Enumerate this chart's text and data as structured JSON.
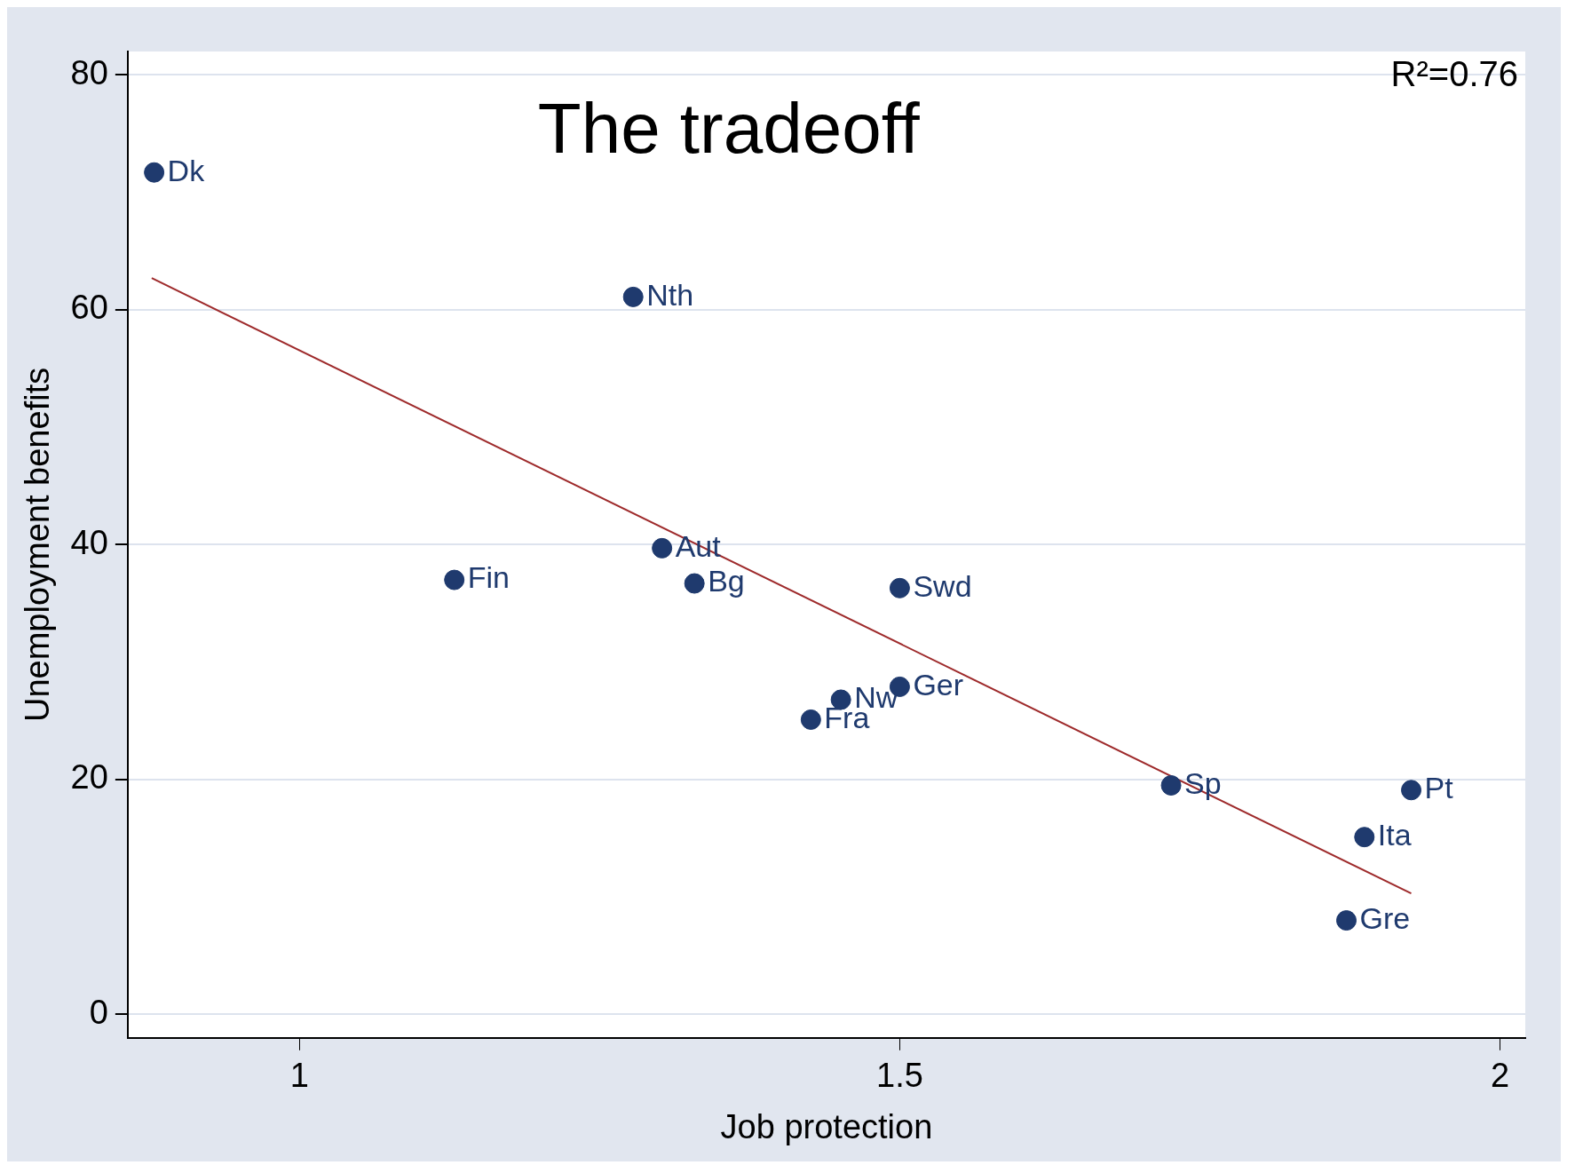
{
  "chart_data": {
    "type": "scatter",
    "title": "The tradeoff",
    "xlabel": "Job protection",
    "ylabel": "Unemployment benefits",
    "xlim": [
      0.857,
      2.021
    ],
    "xticks": [
      1,
      1.5,
      2
    ],
    "ylim": [
      -2,
      82
    ],
    "yticks": [
      0,
      20,
      40,
      60,
      80
    ],
    "grid": "y",
    "legend": false,
    "marker": "circle",
    "series": [
      {
        "color": "#1f3a6e",
        "x": [
          0.879,
          1.278,
          1.302,
          1.329,
          1.129,
          1.5,
          1.5,
          1.451,
          1.426,
          1.726,
          1.926,
          1.887,
          1.872
        ],
        "values": [
          71.7,
          61.1,
          39.7,
          36.7,
          37.0,
          36.3,
          27.9,
          26.8,
          25.1,
          19.5,
          19.1,
          15.1,
          8.0
        ]
      },
      {
        "type": "line",
        "marker": "none",
        "color": "#9e2a2b",
        "x": [
          0.877,
          1.926
        ],
        "values": [
          62.7,
          10.3
        ]
      }
    ],
    "annotations": [
      {
        "text": "Dk",
        "x": 0.879,
        "y": 71.7
      },
      {
        "text": "Nth",
        "x": 1.278,
        "y": 61.1
      },
      {
        "text": "Aut",
        "x": 1.302,
        "y": 39.7
      },
      {
        "text": "Bg",
        "x": 1.329,
        "y": 36.7
      },
      {
        "text": "Fin",
        "x": 1.129,
        "y": 37.0
      },
      {
        "text": "Swd",
        "x": 1.5,
        "y": 36.3
      },
      {
        "text": "Ger",
        "x": 1.5,
        "y": 27.9
      },
      {
        "text": "Nw",
        "x": 1.451,
        "y": 26.8
      },
      {
        "text": "Fra",
        "x": 1.426,
        "y": 25.1
      },
      {
        "text": "Sp",
        "x": 1.726,
        "y": 19.5
      },
      {
        "text": "Pt",
        "x": 1.926,
        "y": 19.1
      },
      {
        "text": "Ita",
        "x": 1.887,
        "y": 15.1
      },
      {
        "text": "Gre",
        "x": 1.872,
        "y": 8.0
      },
      "R²=0.76"
    ]
  }
}
